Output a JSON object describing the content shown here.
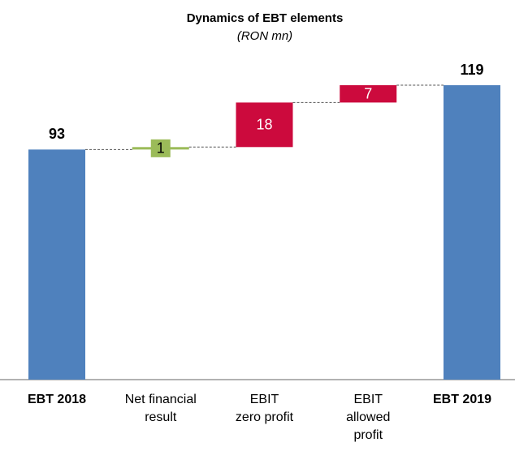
{
  "chart_data": {
    "type": "waterfall",
    "title": "Dynamics of EBT elements",
    "subtitle": "(RON mn)",
    "categories": [
      "EBT 2018",
      "Net financial\nresult",
      "EBIT\nzero profit",
      "EBIT\nallowed\nprofit",
      "EBT 2019"
    ],
    "values": [
      93,
      1,
      18,
      7,
      119
    ],
    "totals": [
      true,
      false,
      false,
      false,
      true
    ],
    "colors": [
      "#4f81bd",
      "#9bbb59",
      "#cc0a3d",
      "#cc0a3d",
      "#4f81bd"
    ]
  }
}
